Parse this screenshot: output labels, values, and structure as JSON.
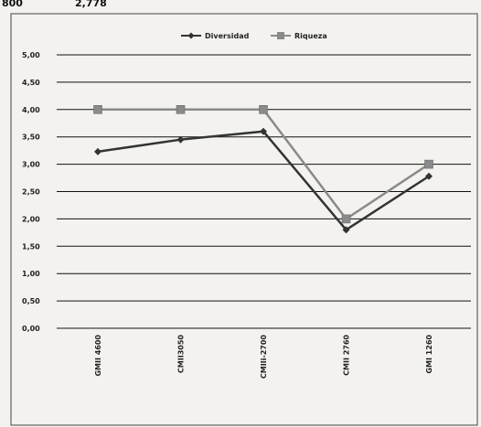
{
  "top_fragment": {
    "left_value": "800",
    "right_value": "2,778"
  },
  "colors": {
    "diversidad": "#333333",
    "riqueza": "#8a8a8a",
    "grid": "#111111",
    "frame": "#444444",
    "background": "#f3f2ef"
  },
  "chart_data": {
    "type": "line",
    "categories": [
      "GMII 4600",
      "CMII3050",
      "CMIIi-2700",
      "CMII 2760",
      "GMI 1260"
    ],
    "series": [
      {
        "name": "Diversidad",
        "marker": "diamond",
        "values": [
          3.23,
          3.45,
          3.6,
          1.8,
          2.78
        ]
      },
      {
        "name": "Riqueza",
        "marker": "square",
        "values": [
          4.0,
          4.0,
          4.0,
          2.0,
          3.0
        ]
      }
    ],
    "yticks": [
      "0,00",
      "0,50",
      "1,00",
      "1,50",
      "2,00",
      "2,50",
      "3,00",
      "3,50",
      "4,00",
      "4,50",
      "5,00"
    ],
    "ylim": [
      0,
      5
    ],
    "ystep": 0.5,
    "grid": true,
    "legend": "top-center"
  }
}
